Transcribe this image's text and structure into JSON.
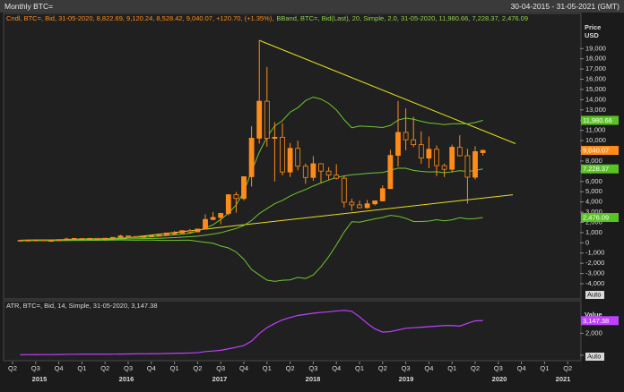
{
  "header": {
    "title": "Monthly BTC=",
    "range": "30-04-2015 - 31-05-2021 (GMT)"
  },
  "x_axis": {
    "quarters": [
      "Q2",
      "Q3",
      "Q4",
      "Q1",
      "Q2",
      "Q3",
      "Q4",
      "Q1",
      "Q2",
      "Q3",
      "Q4",
      "Q1",
      "Q2",
      "Q3",
      "Q4",
      "Q1",
      "Q2",
      "Q3",
      "Q4",
      "Q1",
      "Q2",
      "Q3",
      "Q4",
      "Q1",
      "Q2"
    ],
    "years": [
      "2015",
      "2016",
      "2017",
      "2018",
      "2019",
      "2020",
      "2021"
    ]
  },
  "chart_data": [
    {
      "type": "candlestick",
      "legend": [
        "Cndl, BTC=, Bid, 31-05-2020, 8,822.69, 9,120.24, 8,528.42, 9,040.07, +120.70, (+1.35%),",
        "BBand, BTC=, Bid(Last), 20, Simple, 2.0, 31-05-2020, 11,980.66, 7,228.37, 2,476.09"
      ],
      "y_label": [
        "Price",
        "USD"
      ],
      "scale_mode": "Auto",
      "color": "#ff8c1a",
      "categories": [
        null,
        null,
        null,
        null,
        null,
        null,
        null,
        null,
        null,
        null,
        null,
        null,
        null,
        null,
        null,
        null,
        null,
        null,
        null,
        null,
        null,
        null,
        null,
        null,
        null,
        null,
        null,
        null,
        null,
        null,
        null,
        null,
        null,
        null,
        null,
        null,
        null,
        null,
        null,
        null,
        null,
        null,
        null,
        null,
        null,
        null,
        null,
        null,
        null,
        null,
        null,
        null,
        null,
        null,
        null,
        null,
        null,
        null,
        null,
        null,
        null
      ],
      "open": [
        236,
        230,
        263,
        284,
        230,
        236,
        314,
        377,
        430,
        368,
        437,
        416,
        448,
        531,
        673,
        624,
        575,
        609,
        698,
        742,
        963,
        965,
        1190,
        1071,
        1348,
        2286,
        2480,
        2875,
        4703,
        4338,
        6468,
        10234,
        13850,
        10220,
        10326,
        6926,
        9241,
        7494,
        6391,
        7735,
        7015,
        6625,
        6317,
        3970,
        3710,
        3437,
        3815,
        4100,
        5300,
        8550,
        10800,
        10080,
        9600,
        8290,
        9150,
        7550,
        7190,
        9350,
        8520,
        6420,
        8822.69
      ],
      "high": [
        247,
        268,
        315,
        285,
        245,
        335,
        503,
        466,
        462,
        446,
        440,
        467,
        555,
        780,
        706,
        626,
        630,
        732,
        755,
        974,
        1153,
        1200,
        1350,
        1350,
        2789,
        3020,
        2930,
        4760,
        4980,
        6480,
        11400,
        19800,
        17200,
        11800,
        11700,
        9760,
        9990,
        7760,
        8480,
        7760,
        7400,
        7680,
        6580,
        4300,
        4130,
        4200,
        4130,
        5620,
        9100,
        13880,
        13150,
        12320,
        10900,
        10400,
        9520,
        7750,
        9600,
        10520,
        9200,
        9450,
        9120.24
      ],
      "low": [
        228,
        221,
        253,
        199,
        226,
        236,
        310,
        347,
        351,
        367,
        393,
        414,
        441,
        526,
        607,
        464,
        570,
        603,
        677,
        741,
        751,
        934,
        892,
        1064,
        1340,
        2210,
        1810,
        2700,
        2950,
        4140,
        5510,
        9700,
        9400,
        6000,
        6600,
        6440,
        7100,
        5780,
        6070,
        5880,
        6130,
        6200,
        3450,
        3150,
        3380,
        3360,
        3660,
        4060,
        5340,
        7470,
        9050,
        9360,
        7740,
        7300,
        6530,
        6430,
        6850,
        8450,
        3850,
        6200,
        8528.42
      ],
      "close": [
        230,
        263,
        284,
        230,
        236,
        314,
        377,
        430,
        368,
        437,
        416,
        448,
        531,
        673,
        624,
        575,
        609,
        698,
        742,
        963,
        965,
        1190,
        1071,
        1348,
        2286,
        2480,
        2875,
        4703,
        4338,
        6468,
        10234,
        13850,
        10220,
        10326,
        6926,
        9241,
        7494,
        6391,
        7735,
        7015,
        6625,
        6317,
        3970,
        3710,
        3437,
        3815,
        4100,
        5300,
        8550,
        10800,
        10080,
        9600,
        8290,
        9150,
        7550,
        7190,
        9350,
        8520,
        6420,
        8919.37,
        9040.07
      ],
      "end_label": "9,040.07",
      "bands": {
        "color": "#6ec72e",
        "label_color": "#58c322",
        "upper": [
          260,
          277,
          294,
          292,
          289,
          305,
          331,
          361,
          374,
          392,
          401,
          411,
          431,
          469,
          511,
          542,
          564,
          590,
          647,
          712,
          779,
          856,
          935,
          1151,
          1453,
          1762,
          2286,
          2900,
          3699,
          5000,
          6991,
          8861,
          10346,
          11428,
          11943,
          12777,
          13221,
          13906,
          14255,
          14058,
          13641,
          12997,
          12042,
          11260,
          11418,
          11385,
          11346,
          11276,
          11486,
          12003,
          12195,
          12083,
          11886,
          11727,
          11659,
          11556,
          11649,
          11655,
          11639,
          11770,
          11980.66
        ],
        "middle": [
          230,
          247,
          259,
          252,
          249,
          260,
          276,
          296,
          304,
          317,
          326,
          336,
          351,
          374,
          391,
          402,
          414,
          430,
          447,
          472,
          509,
          556,
          595,
          651,
          753,
          862,
          986,
          1200,
          1399,
          1700,
          2191,
          2861,
          3346,
          3828,
          4143,
          4577,
          4921,
          5206,
          5555,
          5858,
          6141,
          6397,
          6542,
          6660,
          6718,
          6785,
          6846,
          6876,
          7086,
          7303,
          7295,
          7083,
          6986,
          6927,
          6959,
          6856,
          6949,
          7055,
          6989,
          7070,
          7228.37
        ],
        "lower": [
          200,
          217,
          224,
          212,
          209,
          215,
          221,
          231,
          234,
          242,
          251,
          261,
          271,
          279,
          271,
          262,
          264,
          270,
          247,
          232,
          239,
          256,
          255,
          151,
          53,
          -38,
          -314,
          -500,
          -901,
          -1600,
          -2609,
          -3139,
          -3654,
          -3772,
          -3657,
          -3623,
          -3379,
          -3494,
          -3145,
          -2342,
          -1359,
          -203,
          1042,
          2060,
          2018,
          2185,
          2346,
          2476,
          2686,
          2603,
          2395,
          2083,
          2086,
          2127,
          2259,
          2156,
          2249,
          2455,
          2339,
          2370,
          2476.09
        ],
        "end_labels": [
          "11,980.66",
          "7,228.37",
          "2,476.09"
        ]
      },
      "trendlines": [
        {
          "color": "#e6e020",
          "values": [
            19800,
            9700
          ]
        },
        {
          "color": "#e6e020",
          "values": [
            250,
            4700
          ]
        }
      ],
      "ylim": [
        -5400,
        21300
      ],
      "yticks": [
        {
          "value": -4000,
          "label": "-4,000"
        },
        {
          "value": -3000,
          "label": "-3,000"
        },
        {
          "value": -2000,
          "label": "-2,000"
        },
        {
          "value": -1000,
          "label": "-1,000"
        },
        0,
        {
          "value": 1000,
          "label": "1,000"
        },
        {
          "value": 2000,
          "label": "2,000"
        },
        {
          "value": 3000,
          "label": "3,000"
        },
        {
          "value": 4000,
          "label": "4,000"
        },
        {
          "value": 5000,
          "label": "5,000"
        },
        {
          "value": 6000,
          "label": "6,000"
        },
        {
          "value": 7000,
          "label": "7,000"
        },
        {
          "value": 8000,
          "label": "8,000"
        },
        {
          "value": 9000,
          "label": "9,000"
        },
        {
          "value": 10000,
          "label": "10,000"
        },
        {
          "value": 11000,
          "label": "11,000"
        },
        {
          "value": 12000,
          "label": "12,000"
        },
        {
          "value": 13000,
          "label": "13,000"
        },
        {
          "value": 14000,
          "label": "14,000"
        },
        {
          "value": 15000,
          "label": "15,000"
        },
        {
          "value": 16000,
          "label": "16,000"
        },
        {
          "value": 17000,
          "label": "17,000"
        },
        {
          "value": 18000,
          "label": "18,000"
        },
        {
          "value": 19000,
          "label": "19,000"
        }
      ]
    },
    {
      "type": "line",
      "legend": [
        "ATR, BTC=, Bid, 14, Simple, 31-05-2020, 3,147.38"
      ],
      "y_label": [
        "Value"
      ],
      "scale_mode": "Auto",
      "color": "#c040ff",
      "categories": [
        null,
        null,
        null,
        null,
        null,
        null,
        null,
        null,
        null,
        null,
        null,
        null,
        null,
        null,
        null,
        null,
        null,
        null,
        null,
        null,
        null,
        null,
        null,
        null,
        null,
        null,
        null,
        null,
        null,
        null,
        null,
        null,
        null,
        null,
        null,
        null,
        null,
        null,
        null,
        null,
        null,
        null,
        null,
        null,
        null,
        null,
        null,
        null,
        null,
        null,
        null,
        null,
        null,
        null,
        null,
        null,
        null,
        null,
        null,
        null,
        null
      ],
      "values": [
        40,
        45,
        50,
        55,
        55,
        60,
        75,
        85,
        90,
        90,
        90,
        90,
        95,
        100,
        110,
        120,
        125,
        130,
        135,
        150,
        170,
        185,
        200,
        230,
        330,
        380,
        450,
        580,
        720,
        880,
        1280,
        1970,
        2510,
        2890,
        3220,
        3430,
        3620,
        3720,
        3820,
        3900,
        3950,
        4030,
        4080,
        4000,
        3500,
        2900,
        2400,
        2100,
        2150,
        2300,
        2450,
        2500,
        2550,
        2600,
        2650,
        2700,
        2700,
        2650,
        2900,
        3130,
        3147.38
      ],
      "end_label": "3,147.38",
      "ylim": [
        -500,
        4800
      ],
      "yticks": [
        0,
        {
          "value": 2000,
          "label": "2,000"
        }
      ]
    }
  ]
}
